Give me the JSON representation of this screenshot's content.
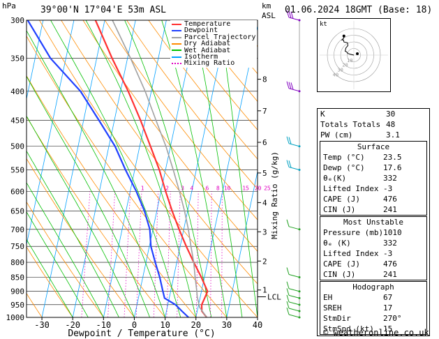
{
  "header": {
    "coords": "39°00'N  17°04'E  53m  ASL",
    "date": "01.06.2024  18GMT  (Base: 18)",
    "unit_left": "hPa",
    "unit_right_km": "km",
    "unit_right_asl": "ASL"
  },
  "legend": [
    {
      "label": "Temperature",
      "color": "#ff3030",
      "style": "solid"
    },
    {
      "label": "Dewpoint",
      "color": "#2040ff",
      "style": "solid"
    },
    {
      "label": "Parcel Trajectory",
      "color": "#a0a0a0",
      "style": "solid"
    },
    {
      "label": "Dry Adiabat",
      "color": "#ff8c00",
      "style": "solid"
    },
    {
      "label": "Wet Adiabat",
      "color": "#00c000",
      "style": "solid"
    },
    {
      "label": "Isotherm",
      "color": "#00a0ff",
      "style": "solid"
    },
    {
      "label": "Mixing Ratio",
      "color": "#e000c0",
      "style": "dotted"
    }
  ],
  "chart_data": {
    "type": "line",
    "xlabel": "Dewpoint / Temperature (°C)",
    "ylabel_right": "Mixing Ratio (g/kg)",
    "xlim": [
      -35,
      40
    ],
    "x_ticks": [
      -30,
      -20,
      -10,
      0,
      10,
      20,
      30,
      40
    ],
    "pressure_levels": [
      300,
      350,
      400,
      450,
      500,
      550,
      600,
      650,
      700,
      750,
      800,
      850,
      900,
      950,
      1000
    ],
    "ylim": [
      1000,
      300
    ],
    "y_scale": "log",
    "km_labels": [
      {
        "km": "1",
        "p": 895
      },
      {
        "km": "2",
        "p": 796
      },
      {
        "km": "3",
        "p": 707
      },
      {
        "km": "4",
        "p": 628
      },
      {
        "km": "5",
        "p": 557
      },
      {
        "km": "6",
        "p": 492
      },
      {
        "km": "7",
        "p": 433
      },
      {
        "km": "8",
        "p": 381
      }
    ],
    "lcl_label": "LCL",
    "lcl_p": 920,
    "mixing_ratio_labels": [
      {
        "g": "1",
        "t": -6
      },
      {
        "g": "2",
        "t": 2
      },
      {
        "g": "3",
        "t": 7
      },
      {
        "g": "4",
        "t": 10
      },
      {
        "g": "6",
        "t": 15
      },
      {
        "g": "8",
        "t": 18.5
      },
      {
        "g": "10",
        "t": 21.5
      },
      {
        "g": "15",
        "t": 27.5
      },
      {
        "g": "20",
        "t": 31.5
      },
      {
        "g": "25",
        "t": 34.5
      }
    ],
    "series": [
      {
        "name": "Temperature",
        "color": "#ff3030",
        "points": [
          [
            1000,
            23.5
          ],
          [
            975,
            21.5
          ],
          [
            950,
            21.0
          ],
          [
            925,
            21.5
          ],
          [
            900,
            22.0
          ],
          [
            850,
            19.0
          ],
          [
            800,
            15.5
          ],
          [
            750,
            12.0
          ],
          [
            700,
            8.5
          ],
          [
            650,
            5.0
          ],
          [
            600,
            1.5
          ],
          [
            550,
            -2.0
          ],
          [
            500,
            -6.5
          ],
          [
            450,
            -11.5
          ],
          [
            400,
            -17.5
          ],
          [
            350,
            -25.0
          ],
          [
            300,
            -33.0
          ]
        ]
      },
      {
        "name": "Dewpoint",
        "color": "#2040ff",
        "points": [
          [
            1000,
            17.6
          ],
          [
            975,
            15.0
          ],
          [
            950,
            12.5
          ],
          [
            925,
            8.5
          ],
          [
            900,
            7.5
          ],
          [
            850,
            5.5
          ],
          [
            800,
            3.0
          ],
          [
            750,
            0.5
          ],
          [
            700,
            -1.0
          ],
          [
            650,
            -4.0
          ],
          [
            600,
            -8.0
          ],
          [
            550,
            -13.0
          ],
          [
            500,
            -18.0
          ],
          [
            450,
            -25.0
          ],
          [
            400,
            -33.0
          ],
          [
            350,
            -45.0
          ],
          [
            300,
            -55.0
          ]
        ]
      },
      {
        "name": "Parcel Trajectory",
        "color": "#a0a0a0",
        "points": [
          [
            1000,
            23.5
          ],
          [
            960,
            20.5
          ],
          [
            920,
            19.0
          ],
          [
            900,
            18.5
          ],
          [
            850,
            17.0
          ],
          [
            800,
            15.5
          ],
          [
            750,
            13.5
          ],
          [
            700,
            11.5
          ],
          [
            650,
            9.0
          ],
          [
            600,
            6.0
          ],
          [
            550,
            2.5
          ],
          [
            500,
            -1.5
          ],
          [
            450,
            -6.5
          ],
          [
            400,
            -12.0
          ],
          [
            350,
            -19.0
          ],
          [
            300,
            -27.5
          ]
        ]
      }
    ],
    "wind_barbs_p": [
      300,
      400,
      500,
      550,
      700,
      850,
      900,
      925,
      950,
      975,
      1000
    ]
  },
  "hodograph": {
    "label": "kt",
    "ring_labels": [
      "10",
      "20",
      "30",
      "40"
    ],
    "points": [
      [
        0,
        0
      ],
      [
        -8,
        2
      ],
      [
        -15,
        4
      ],
      [
        -18,
        8
      ],
      [
        -22,
        10
      ],
      [
        -20,
        18
      ],
      [
        -15,
        24
      ],
      [
        -16,
        31
      ],
      [
        -25,
        33
      ],
      [
        -26,
        38
      ],
      [
        -30,
        38
      ],
      [
        -26,
        42
      ],
      [
        -25,
        48
      ]
    ]
  },
  "indices": {
    "k": {
      "label": "K",
      "value": "30"
    },
    "tt": {
      "label": "Totals Totals",
      "value": "48"
    },
    "pw": {
      "label": "PW (cm)",
      "value": "3.1"
    }
  },
  "surface": {
    "title": "Surface",
    "rows": [
      {
        "label": "Temp (°C)",
        "value": "23.5"
      },
      {
        "label": "Dewp (°C)",
        "value": "17.6"
      },
      {
        "label": "θₑ(K)",
        "value": "332"
      },
      {
        "label": "Lifted Index",
        "value": "-3"
      },
      {
        "label": "CAPE (J)",
        "value": "476"
      },
      {
        "label": "CIN (J)",
        "value": "241"
      }
    ]
  },
  "most_unstable": {
    "title": "Most Unstable",
    "rows": [
      {
        "label": "Pressure (mb)",
        "value": "1010"
      },
      {
        "label": "θₑ (K)",
        "value": "332"
      },
      {
        "label": "Lifted Index",
        "value": "-3"
      },
      {
        "label": "CAPE (J)",
        "value": "476"
      },
      {
        "label": "CIN (J)",
        "value": "241"
      }
    ]
  },
  "hodograph_table": {
    "title": "Hodograph",
    "rows": [
      {
        "label": "EH",
        "value": "67"
      },
      {
        "label": "SREH",
        "value": "17"
      },
      {
        "label": "StmDir",
        "value": "270°"
      },
      {
        "label": "StmSpd (kt)",
        "value": "15"
      }
    ]
  },
  "copyright": "© weatheronline.co.uk"
}
